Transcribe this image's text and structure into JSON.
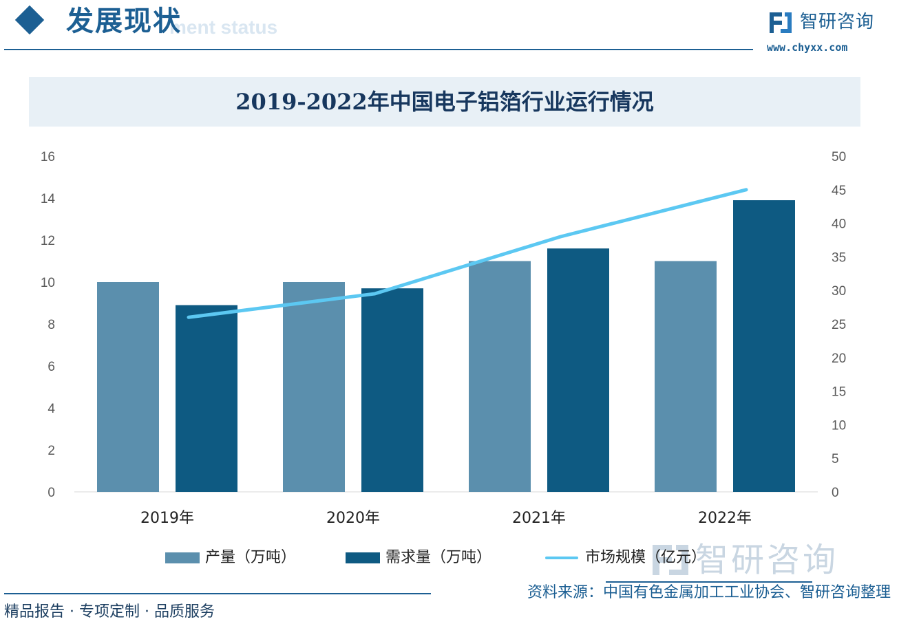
{
  "header": {
    "section_title": "发展现状",
    "section_subtitle": "ment status",
    "brand_name": "智研咨询",
    "brand_url": "www.chyxx.com"
  },
  "chart_data": {
    "type": "bar",
    "title": "2019-2022年中国电子铝箔行业运行情况",
    "categories": [
      "2019年",
      "2020年",
      "2021年",
      "2022年"
    ],
    "series": [
      {
        "name": "产量（万吨）",
        "type": "bar",
        "axis": "left",
        "color": "#5b8fad",
        "values": [
          10,
          10,
          11,
          11
        ]
      },
      {
        "name": "需求量（万吨）",
        "type": "bar",
        "axis": "left",
        "color": "#0e5a82",
        "values": [
          8.9,
          9.7,
          11.6,
          13.9
        ]
      },
      {
        "name": "市场规模（亿元）",
        "type": "line",
        "axis": "right",
        "color": "#5cc8f2",
        "values": [
          26,
          29.5,
          38,
          45
        ]
      }
    ],
    "y_left": {
      "lim": [
        0,
        16
      ],
      "ticks": [
        "0",
        "2",
        "4",
        "6",
        "8",
        "10",
        "12",
        "14",
        "16"
      ]
    },
    "y_right": {
      "lim": [
        0,
        50
      ],
      "ticks": [
        "0",
        "5",
        "10",
        "15",
        "20",
        "25",
        "30",
        "35",
        "40",
        "45",
        "50"
      ]
    },
    "grid": false,
    "legend_position": "bottom"
  },
  "footer": {
    "slogan": "精品报告 · 专项定制 · 品质服务",
    "source": "资料来源：中国有色金属加工工业协会、智研咨询整理",
    "watermark_text": "智研咨询"
  }
}
